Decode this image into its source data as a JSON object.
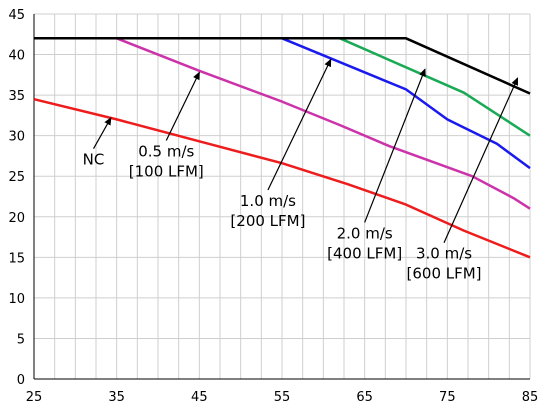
{
  "chart_data": {
    "type": "line",
    "xlim": [
      25,
      85
    ],
    "ylim": [
      0,
      45
    ],
    "x_ticks": [
      25,
      35,
      45,
      55,
      65,
      75,
      85
    ],
    "y_ticks": [
      0,
      5,
      10,
      15,
      20,
      25,
      30,
      35,
      40,
      45
    ],
    "grid": true,
    "series": [
      {
        "color": "#ee1c1c",
        "points": [
          [
            25,
            34.5
          ],
          [
            35,
            32
          ],
          [
            45,
            29.3
          ],
          [
            55,
            26.6
          ],
          [
            63,
            24
          ],
          [
            70,
            21.5
          ],
          [
            77,
            18.3
          ],
          [
            85,
            15
          ]
        ]
      },
      {
        "color": "#cc33aa",
        "points": [
          [
            25,
            42
          ],
          [
            35,
            42
          ],
          [
            45,
            38
          ],
          [
            55,
            34.2
          ],
          [
            62,
            31.3
          ],
          [
            68,
            28.7
          ],
          [
            78,
            25
          ],
          [
            83,
            22.3
          ],
          [
            85,
            21
          ]
        ]
      },
      {
        "color": "#1a1aee",
        "points": [
          [
            25,
            42
          ],
          [
            55,
            42
          ],
          [
            70,
            35.7
          ],
          [
            75,
            32
          ],
          [
            81,
            29
          ],
          [
            85,
            26
          ]
        ]
      },
      {
        "color": "#1aaa55",
        "points": [
          [
            25,
            42
          ],
          [
            62,
            42
          ],
          [
            77,
            35.3
          ],
          [
            85,
            30
          ]
        ]
      },
      {
        "color": "#000000",
        "points": [
          [
            25,
            42
          ],
          [
            70,
            42
          ],
          [
            85,
            35.2
          ]
        ]
      }
    ],
    "annotations": [
      {
        "id": "nc",
        "lines": [
          "NC"
        ],
        "arrow_from": [
          32.2,
          28.4
        ],
        "arrow_to": [
          34.3,
          32.2
        ]
      },
      {
        "id": "s05",
        "lines": [
          "0.5 m/s",
          "[100 LFM]"
        ],
        "arrow_from": [
          41,
          29.4
        ],
        "arrow_to": [
          45,
          37.8
        ]
      },
      {
        "id": "s10",
        "lines": [
          "1.0 m/s",
          "[200 LFM]"
        ],
        "arrow_from": [
          53.3,
          23.3
        ],
        "arrow_to": [
          60.9,
          39.4
        ]
      },
      {
        "id": "s20",
        "lines": [
          "2.0 m/s",
          "[400 LFM]"
        ],
        "arrow_from": [
          65,
          19.3
        ],
        "arrow_to": [
          72.3,
          38.2
        ]
      },
      {
        "id": "s30",
        "lines": [
          "3.0 m/s",
          "[600 LFM]"
        ],
        "arrow_from": [
          74.6,
          16.8
        ],
        "arrow_to": [
          83.5,
          37.1
        ]
      }
    ]
  }
}
